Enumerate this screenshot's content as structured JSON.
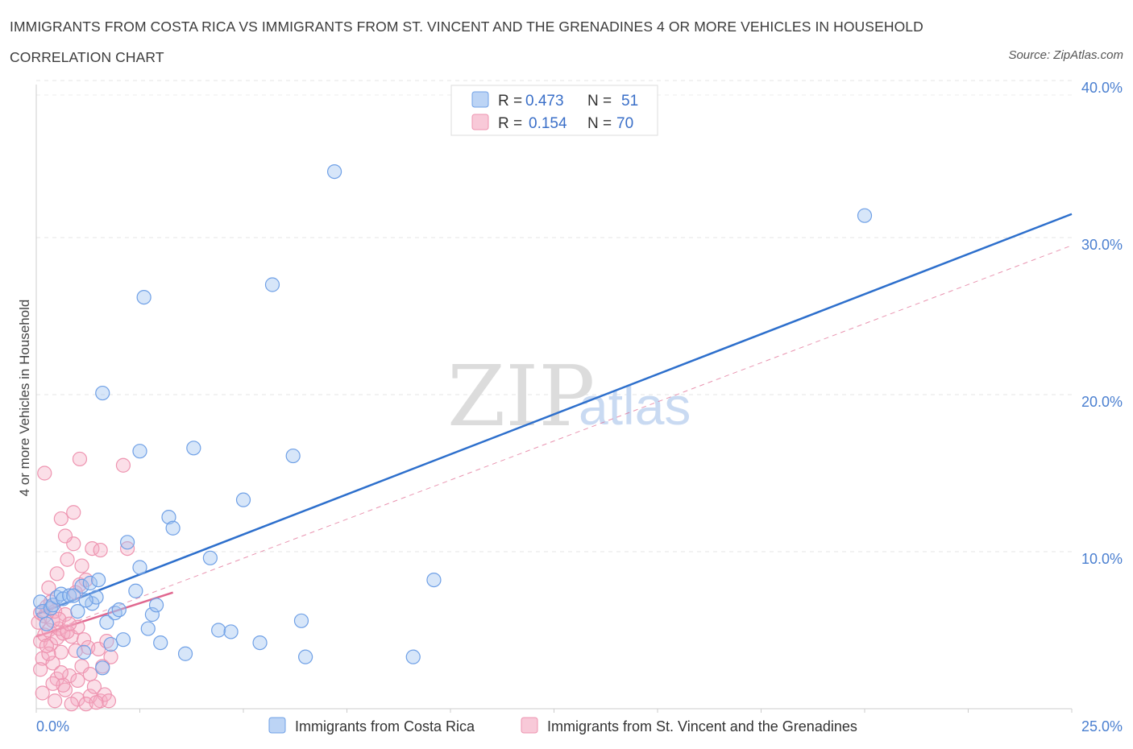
{
  "title": "IMMIGRANTS FROM COSTA RICA VS IMMIGRANTS FROM ST. VINCENT AND THE GRENADINES 4 OR MORE VEHICLES IN HOUSEHOLD CORRELATION CHART",
  "source": "Source: ZipAtlas.com",
  "watermark": {
    "zip": "ZIP",
    "atlas": "atlas"
  },
  "legend": {
    "r_label": "R =",
    "n_label": "N =",
    "series1": {
      "r": "0.473",
      "n": "51"
    },
    "series2": {
      "r": "0.154",
      "n": "70"
    }
  },
  "chart_data": {
    "type": "scatter",
    "title": "IMMIGRANTS FROM COSTA RICA VS IMMIGRANTS FROM ST. VINCENT AND THE GRENADINES 4 OR MORE VEHICLES IN HOUSEHOLD CORRELATION CHART",
    "ylabel": "4 or more Vehicles in Household",
    "xlabel": "",
    "xlim": [
      0,
      25
    ],
    "ylim": [
      0,
      40
    ],
    "x_tick_labels": [
      "0.0%",
      "25.0%"
    ],
    "y_ticks": [
      10,
      20,
      30,
      40
    ],
    "y_tick_labels": [
      "10.0%",
      "20.0%",
      "30.0%",
      "40.0%"
    ],
    "grid": true,
    "colors": {
      "series1": "#6fa0e6",
      "series1_line": "#2d6fcc",
      "series2": "#ee94b0",
      "series2_line": "#e0678f"
    },
    "series": [
      {
        "name": "Immigrants from Costa Rica",
        "r": 0.473,
        "n": 51,
        "trend": {
          "x": [
            0,
            25
          ],
          "y": [
            6.0,
            31.5
          ],
          "style": "solid"
        },
        "points": [
          [
            0.1,
            6.8
          ],
          [
            0.15,
            6.2
          ],
          [
            0.25,
            5.4
          ],
          [
            0.35,
            6.4
          ],
          [
            0.4,
            6.6
          ],
          [
            0.5,
            7.1
          ],
          [
            0.6,
            7.3
          ],
          [
            0.65,
            7.0
          ],
          [
            0.8,
            7.2
          ],
          [
            1.0,
            6.2
          ],
          [
            1.1,
            7.8
          ],
          [
            1.15,
            3.6
          ],
          [
            1.3,
            8.0
          ],
          [
            1.35,
            6.7
          ],
          [
            1.45,
            7.1
          ],
          [
            1.5,
            8.2
          ],
          [
            1.6,
            2.6
          ],
          [
            1.7,
            5.5
          ],
          [
            1.8,
            4.1
          ],
          [
            1.9,
            6.1
          ],
          [
            2.1,
            4.4
          ],
          [
            2.2,
            10.6
          ],
          [
            2.4,
            7.5
          ],
          [
            2.5,
            9.0
          ],
          [
            2.7,
            5.1
          ],
          [
            2.8,
            6.0
          ],
          [
            2.9,
            6.6
          ],
          [
            3.0,
            4.2
          ],
          [
            3.2,
            12.2
          ],
          [
            3.3,
            11.5
          ],
          [
            3.6,
            3.5
          ],
          [
            4.2,
            9.6
          ],
          [
            4.4,
            5.0
          ],
          [
            4.7,
            4.9
          ],
          [
            5.0,
            13.3
          ],
          [
            5.4,
            4.2
          ],
          [
            6.2,
            16.1
          ],
          [
            6.4,
            5.6
          ],
          [
            6.5,
            3.3
          ],
          [
            9.1,
            3.3
          ],
          [
            9.6,
            8.2
          ],
          [
            2.6,
            26.2
          ],
          [
            5.7,
            27.0
          ],
          [
            7.2,
            34.2
          ],
          [
            20.0,
            31.4
          ],
          [
            1.6,
            20.1
          ],
          [
            2.5,
            16.4
          ],
          [
            3.8,
            16.6
          ],
          [
            0.9,
            7.2
          ],
          [
            1.2,
            6.9
          ],
          [
            2.0,
            6.3
          ]
        ]
      },
      {
        "name": "Immigrants from St. Vincent and the Grenadines",
        "r": 0.154,
        "n": 70,
        "trend_solid": {
          "x": [
            0,
            3.3
          ],
          "y": [
            4.6,
            7.4
          ]
        },
        "trend_dashed": {
          "x": [
            0,
            25
          ],
          "y": [
            4.6,
            29.5
          ]
        },
        "points": [
          [
            0.05,
            5.5
          ],
          [
            0.1,
            4.3
          ],
          [
            0.1,
            6.1
          ],
          [
            0.15,
            3.2
          ],
          [
            0.2,
            5.9
          ],
          [
            0.2,
            4.7
          ],
          [
            0.25,
            6.5
          ],
          [
            0.3,
            5.0
          ],
          [
            0.3,
            7.7
          ],
          [
            0.35,
            4.1
          ],
          [
            0.4,
            5.6
          ],
          [
            0.4,
            2.9
          ],
          [
            0.45,
            6.2
          ],
          [
            0.5,
            4.5
          ],
          [
            0.5,
            1.9
          ],
          [
            0.55,
            5.1
          ],
          [
            0.6,
            3.6
          ],
          [
            0.6,
            12.1
          ],
          [
            0.65,
            4.8
          ],
          [
            0.7,
            6.0
          ],
          [
            0.7,
            1.2
          ],
          [
            0.75,
            9.5
          ],
          [
            0.8,
            2.1
          ],
          [
            0.85,
            4.6
          ],
          [
            0.9,
            10.5
          ],
          [
            0.95,
            3.7
          ],
          [
            1.0,
            5.2
          ],
          [
            1.0,
            0.6
          ],
          [
            1.05,
            7.9
          ],
          [
            1.1,
            2.7
          ],
          [
            1.15,
            4.4
          ],
          [
            1.2,
            8.2
          ],
          [
            1.25,
            3.9
          ],
          [
            1.3,
            0.8
          ],
          [
            1.35,
            10.2
          ],
          [
            1.4,
            1.4
          ],
          [
            1.5,
            3.8
          ],
          [
            1.55,
            0.5
          ],
          [
            1.6,
            2.7
          ],
          [
            1.65,
            0.9
          ],
          [
            1.7,
            4.3
          ],
          [
            1.75,
            0.5
          ],
          [
            1.8,
            3.3
          ],
          [
            0.2,
            15.0
          ],
          [
            1.05,
            15.9
          ],
          [
            1.55,
            10.1
          ],
          [
            2.1,
            15.5
          ],
          [
            2.2,
            10.2
          ],
          [
            0.9,
            12.5
          ],
          [
            0.7,
            11.0
          ],
          [
            0.3,
            3.5
          ],
          [
            0.15,
            1.0
          ],
          [
            0.45,
            0.5
          ],
          [
            0.65,
            1.5
          ],
          [
            0.85,
            0.3
          ],
          [
            1.2,
            0.3
          ],
          [
            1.45,
            0.4
          ],
          [
            0.25,
            4.0
          ],
          [
            0.55,
            5.7
          ],
          [
            0.75,
            4.9
          ],
          [
            0.95,
            7.4
          ],
          [
            1.1,
            9.1
          ],
          [
            0.35,
            6.8
          ],
          [
            0.6,
            2.3
          ],
          [
            0.4,
            1.6
          ],
          [
            1.3,
            2.2
          ],
          [
            0.1,
            2.5
          ],
          [
            0.8,
            5.4
          ],
          [
            1.0,
            1.8
          ],
          [
            0.5,
            8.6
          ]
        ]
      }
    ]
  }
}
